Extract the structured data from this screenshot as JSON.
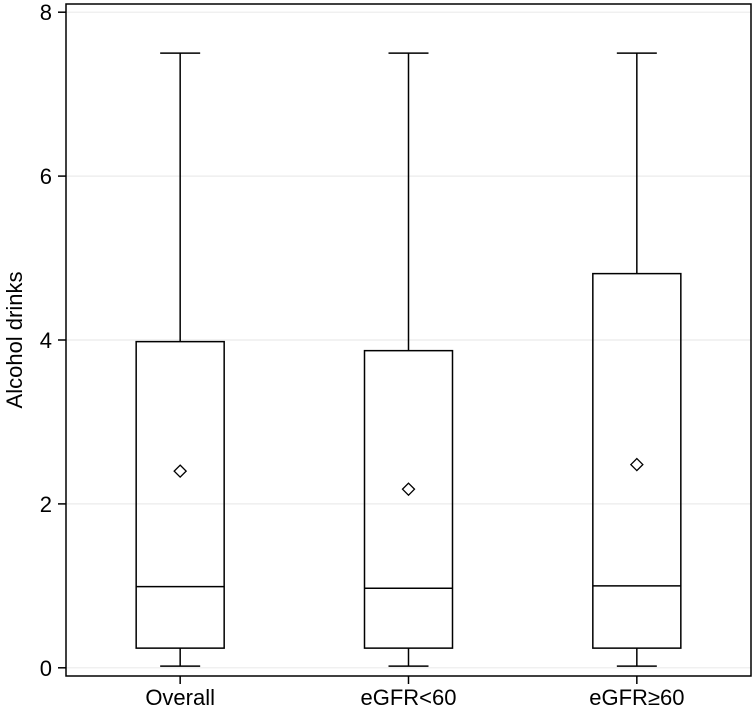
{
  "chart_data": {
    "type": "boxplot",
    "title": "",
    "xlabel": "",
    "ylabel": "Alcohol drinks",
    "ylim": [
      -0.1,
      8.1
    ],
    "yticks": [
      0,
      2,
      4,
      6,
      8
    ],
    "grid": {
      "horizontal": true,
      "vertical": false
    },
    "legend": "none",
    "categories": [
      "Overall",
      "eGFR<60",
      "eGFR≥60"
    ],
    "boxes": [
      {
        "category": "Overall",
        "whisker_low": 0.02,
        "q1": 0.24,
        "median": 0.99,
        "q3": 3.98,
        "whisker_high": 7.5,
        "mean": 2.4
      },
      {
        "category": "eGFR<60",
        "whisker_low": 0.02,
        "q1": 0.24,
        "median": 0.97,
        "q3": 3.87,
        "whisker_high": 7.5,
        "mean": 2.18
      },
      {
        "category": "eGFR≥60",
        "whisker_low": 0.02,
        "q1": 0.24,
        "median": 1.0,
        "q3": 4.81,
        "whisker_high": 7.5,
        "mean": 2.48
      }
    ],
    "colors": {
      "box_fill": "#ffffff",
      "stroke": "#000000",
      "grid": "#ebebeb",
      "background": "#ffffff"
    },
    "mean_marker": "diamond"
  }
}
